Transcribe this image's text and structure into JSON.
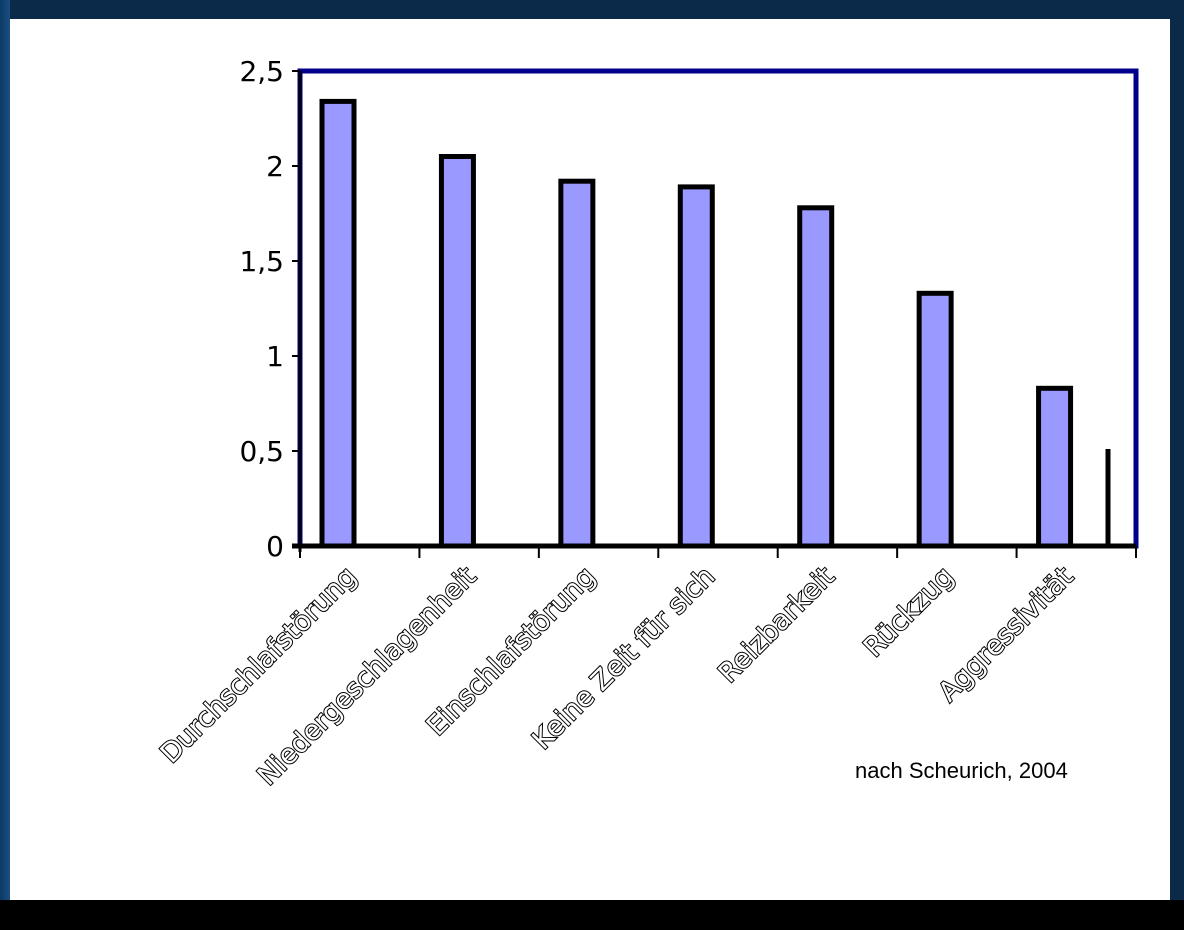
{
  "chart_data": {
    "type": "bar",
    "categories": [
      "Durchschlafstörung",
      "Niedergeschlagenheit",
      "Einschlafstörung",
      "Keine Zeit für sich",
      "Reizbarkeit",
      "Rückzug",
      "Aggressivität"
    ],
    "values": [
      2.34,
      2.05,
      1.92,
      1.89,
      1.78,
      1.33,
      0.83
    ],
    "y_ticks": [
      "0",
      "0,5",
      "1",
      "1,5",
      "2",
      "2,5"
    ],
    "ylim": [
      0,
      2.5
    ],
    "title": "",
    "xlabel": "",
    "ylabel": "",
    "bar_color": "#9999ff",
    "frame_color": "#00008b",
    "grid": false,
    "legend": false
  },
  "source_note": "nach Scheurich, 2004"
}
